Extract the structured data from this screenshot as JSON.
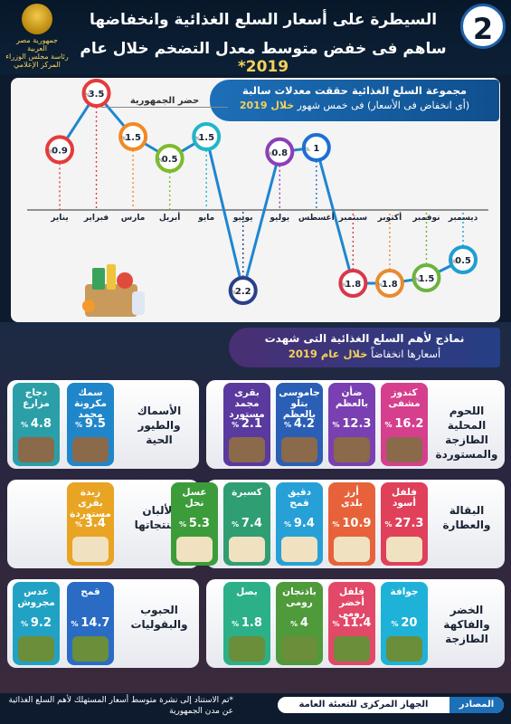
{
  "header": {
    "badge": "2",
    "title_line1": "السيطرة على أسعار السلع الغذائية وانخفاضها",
    "title_line2": "ساهم فى خفض متوسط معدل التضخم خلال عام",
    "title_year": "2019*",
    "logo_lines": [
      "جمهورية مصر العربية",
      "رئاسة مجلس الوزراء",
      "المركز الإعلامي"
    ]
  },
  "chart_section": {
    "banner_line1": "مجموعة السلع الغذائية حققت معدلات سالبة",
    "banner_line2_a": "(أى انخفاض فى الأسعار) فى خمس شهور",
    "banner_line2_b": "خلال 2019",
    "capital_label": "حضر الجمهورية"
  },
  "chart_data": {
    "type": "line",
    "categories": [
      "يناير",
      "فبراير",
      "مارس",
      "أبريل",
      "مايو",
      "يونيو",
      "يوليو",
      "أغسطس",
      "سبتمبر",
      "أكتوبر",
      "نوفمبر",
      "ديسمبر"
    ],
    "values": [
      0.9,
      3.5,
      1.5,
      0.5,
      1.5,
      -2.2,
      0.8,
      1,
      -1.8,
      -1.8,
      -1.5,
      -0.5
    ],
    "labels": [
      "0.9",
      "3.5",
      "1.5",
      "0.5",
      "1.5",
      "2.2",
      "0.8",
      "1",
      "1.8",
      "1.8",
      "1.5",
      "0.5"
    ],
    "colors": [
      "#e53b3b",
      "#e53b3b",
      "#f08a24",
      "#7dbb2c",
      "#1fb7c9",
      "#2b3f8a",
      "#8a3fb8",
      "#1f6fd1",
      "#d9374a",
      "#e88b2e",
      "#6cb33f",
      "#1f9ed1"
    ],
    "line_color": "#1e86d0",
    "grid": false
  },
  "lower_section": {
    "banner_line1": "نماذج لأهم السلع الغذائية التى شهدت",
    "banner_line2_a": "أسعارها انخفاضاً",
    "banner_line2_b": "خلال عام 2019"
  },
  "rows": [
    {
      "left_label": [
        "الأسماك",
        "والطيور",
        "الحية"
      ],
      "right_label": [
        "اللحوم المحلية",
        "الطازجة",
        "والمستوردة"
      ],
      "right_cards": [
        {
          "name": "كندوز\nمشفى",
          "value": "16.2",
          "color": "#d63f8d"
        },
        {
          "name": "ضأن\nبالعظم",
          "value": "12.3",
          "color": "#7a3fb0"
        },
        {
          "name": "جاموسى\nبتلو\nبالعظم",
          "value": "4.2",
          "color": "#2a5fb5"
        },
        {
          "name": "بقرى\nمجمد\nمستورد",
          "value": "2.1",
          "color": "#5a3a9e"
        }
      ],
      "left_cards": [
        {
          "name": "سمك\nمكرونة\nمجمد",
          "value": "9.5",
          "color": "#1f86c9"
        },
        {
          "name": "دجاج\nمزارع",
          "value": "4.8",
          "color": "#2a9fa8"
        }
      ]
    },
    {
      "left_label": [
        "الألبان",
        "ومنتجاتها"
      ],
      "right_label": [
        "البقالة",
        "والعطارة"
      ],
      "right_cards": [
        {
          "name": "فلفل\nأسود",
          "value": "27.3",
          "color": "#e0405a"
        },
        {
          "name": "أرز\nبلدى",
          "value": "10.9",
          "color": "#e7623a"
        },
        {
          "name": "دقيق\nقمح",
          "value": "9.4",
          "color": "#27a0d8"
        },
        {
          "name": "كسبرة",
          "value": "7.4",
          "color": "#2f9e73"
        },
        {
          "name": "عسل\nنحل",
          "value": "5.3",
          "color": "#3c9c3a"
        }
      ],
      "left_cards": [
        {
          "name": "زبدة\nبقرى\nمستوردة",
          "value": "3.4",
          "color": "#e8a422"
        }
      ]
    },
    {
      "left_label": [
        "الحبوب",
        "والبقوليات"
      ],
      "right_label": [
        "الخضر",
        "والفاكهة",
        "الطازجة"
      ],
      "right_cards": [
        {
          "name": "جوافة",
          "value": "20",
          "color": "#1fb2d8"
        },
        {
          "name": "فلفل\nأخضر\nرومى",
          "value": "11.4",
          "color": "#e24868"
        },
        {
          "name": "باذنجان\nرومى",
          "value": "4",
          "color": "#4f9a3a"
        },
        {
          "name": "بصل",
          "value": "1.8",
          "color": "#2bb088"
        }
      ],
      "left_cards": [
        {
          "name": "قمح",
          "value": "14.7",
          "color": "#2a6cc4"
        },
        {
          "name": "عدس\nمجروش",
          "value": "9.2",
          "color": "#21a2c4"
        }
      ]
    }
  ],
  "footer": {
    "footnote": "*تم الاستناد إلى نشرة متوسط أسعار المستهلك لأهم السلع الغذائية عن مدن الجمهورية",
    "source_label": "المصادر",
    "source_text": "الجهاز المركزى للتعبئة العامة والإحصاء"
  }
}
